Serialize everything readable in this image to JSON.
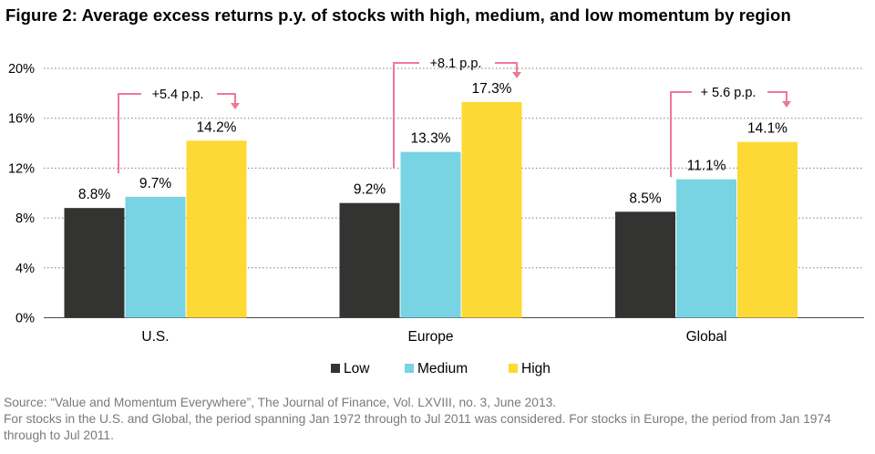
{
  "title": "Figure 2: Average excess returns p.y. of stocks with high, medium, and low momentum by region",
  "source": "Source: “Value and Momentum Everywhere”, The Journal of Finance, Vol. LXVIII, no. 3, June 2013.",
  "note": "For stocks in the U.S. and Global, the period spanning Jan 1972 through to Jul 2011 was considered. For stocks in Europe, the period from Jan 1974 through to Jul 2011.",
  "colors": {
    "Low": "#333432",
    "Medium": "#78d3e3",
    "High": "#fcd934",
    "annotation": "#f07896",
    "grid": "#7f7f7f"
  },
  "chart_data": {
    "type": "bar",
    "categories": [
      "U.S.",
      "Europe",
      "Global"
    ],
    "series": [
      {
        "name": "Low",
        "values": [
          8.8,
          9.2,
          8.5
        ],
        "labels": [
          "8.8%",
          "9.2%",
          "8.5%"
        ]
      },
      {
        "name": "Medium",
        "values": [
          9.7,
          13.3,
          11.1
        ],
        "labels": [
          "9.7%",
          "13.3%",
          "11.1%"
        ]
      },
      {
        "name": "High",
        "values": [
          14.2,
          17.3,
          14.1
        ],
        "labels": [
          "14.2%",
          "17.3%",
          "14.1%"
        ]
      }
    ],
    "yticks": [
      "0%",
      "4%",
      "8%",
      "12%",
      "16%",
      "20%"
    ],
    "ylim": [
      0,
      20
    ],
    "grid": "dotted horizontal",
    "legend": "bottom-center",
    "annotations": [
      "+5.4 p.p.",
      "+8.1 p.p.",
      "+ 5.6 p.p."
    ]
  }
}
